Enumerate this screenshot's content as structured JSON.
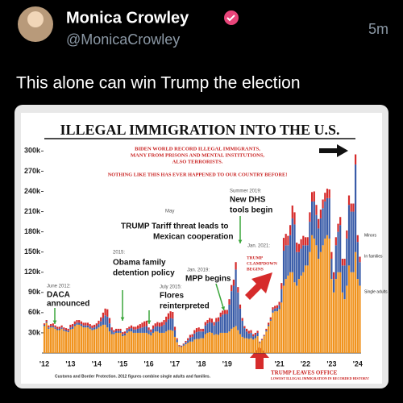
{
  "tweet": {
    "name": "Monica Crowley",
    "handle": "@MonicaCrowley",
    "time": "5m",
    "text": "This alone can win Trump the election"
  },
  "chart_data": {
    "type": "bar",
    "stacked": true,
    "title": "ILLEGAL IMMIGRATION INTO THE U.S.",
    "categories": [
      "'12",
      null,
      null,
      null,
      null,
      null,
      null,
      null,
      null,
      null,
      null,
      null,
      "'13",
      null,
      null,
      null,
      null,
      null,
      null,
      null,
      null,
      null,
      null,
      null,
      "'14",
      null,
      null,
      null,
      null,
      null,
      null,
      null,
      null,
      null,
      null,
      null,
      "'15",
      null,
      null,
      null,
      null,
      null,
      null,
      null,
      null,
      null,
      null,
      null,
      "'16",
      null,
      null,
      null,
      null,
      null,
      null,
      null,
      null,
      null,
      null,
      null,
      "'17",
      null,
      null,
      null,
      null,
      null,
      null,
      null,
      null,
      null,
      null,
      null,
      "'18",
      null,
      null,
      null,
      null,
      null,
      null,
      null,
      null,
      null,
      null,
      null,
      "'19",
      null,
      null,
      null,
      null,
      null,
      null,
      null,
      null,
      null,
      null,
      null,
      null,
      null,
      null,
      null,
      null,
      null,
      null,
      null,
      null,
      null,
      null,
      null,
      "'21",
      null,
      null,
      null,
      null,
      null,
      null,
      null,
      null,
      null,
      null,
      null,
      "'22",
      null,
      null,
      null,
      null,
      null,
      null,
      null,
      null,
      null,
      null,
      null,
      "'23",
      null,
      null,
      null,
      null,
      null,
      null,
      null,
      null,
      null,
      null,
      null,
      "'24",
      null
    ],
    "series": [
      {
        "name": "Single adults",
        "color": "#f0931e",
        "values": [
          40,
          45,
          36,
          38,
          38,
          36,
          34,
          34,
          36,
          33,
          32,
          31,
          35,
          36,
          40,
          42,
          42,
          40,
          38,
          38,
          38,
          36,
          34,
          35,
          36,
          38,
          40,
          42,
          42,
          38,
          32,
          28,
          28,
          30,
          30,
          30,
          25,
          26,
          30,
          32,
          32,
          30,
          30,
          30,
          30,
          30,
          30,
          30,
          28,
          26,
          30,
          32,
          32,
          30,
          30,
          30,
          32,
          34,
          34,
          33,
          24,
          16,
          10,
          9,
          11,
          13,
          15,
          17,
          17,
          20,
          21,
          21,
          22,
          22,
          28,
          30,
          31,
          30,
          27,
          28,
          27,
          30,
          30,
          30,
          30,
          32,
          36,
          38,
          40,
          34,
          28,
          24,
          22,
          22,
          21,
          22,
          20,
          22,
          25,
          15,
          19,
          25,
          32,
          40,
          48,
          60,
          62,
          62,
          65,
          75,
          100,
          110,
          115,
          120,
          120,
          105,
          100,
          110,
          115,
          120,
          130,
          130,
          150,
          175,
          170,
          160,
          140,
          150,
          160,
          170,
          175,
          170,
          110,
          90,
          110,
          120,
          120,
          90,
          80,
          100,
          130,
          120,
          120,
          150,
          110,
          100
        ]
      },
      {
        "name": "In families",
        "color": "#3a5ca8",
        "values": [
          2,
          2,
          2,
          2,
          2,
          2,
          2,
          2,
          2,
          2,
          2,
          2,
          3,
          3,
          3,
          3,
          3,
          3,
          3,
          3,
          3,
          3,
          3,
          3,
          4,
          5,
          7,
          10,
          14,
          16,
          12,
          6,
          3,
          3,
          3,
          3,
          3,
          3,
          4,
          4,
          5,
          5,
          5,
          6,
          7,
          8,
          9,
          10,
          6,
          5,
          6,
          7,
          8,
          9,
          10,
          12,
          14,
          16,
          18,
          18,
          10,
          4,
          1,
          1,
          2,
          3,
          4,
          6,
          7,
          9,
          10,
          11,
          10,
          10,
          13,
          14,
          15,
          15,
          14,
          18,
          20,
          24,
          27,
          28,
          28,
          40,
          56,
          62,
          84,
          56,
          38,
          24,
          15,
          10,
          8,
          8,
          5,
          5,
          5,
          1,
          1,
          1,
          2,
          2,
          2,
          4,
          4,
          5,
          6,
          20,
          52,
          50,
          45,
          55,
          80,
          86,
          50,
          40,
          40,
          40,
          30,
          30,
          45,
          50,
          55,
          45,
          45,
          50,
          55,
          55,
          55,
          60,
          30,
          20,
          50,
          60,
          70,
          40,
          50,
          70,
          90,
          90,
          90,
          130,
          55,
          35
        ]
      },
      {
        "name": "Minors",
        "color": "#d62b2b",
        "values": [
          2,
          2,
          3,
          3,
          4,
          3,
          3,
          3,
          3,
          3,
          3,
          3,
          4,
          4,
          4,
          4,
          4,
          4,
          4,
          4,
          4,
          4,
          4,
          4,
          4,
          5,
          6,
          8,
          10,
          11,
          8,
          4,
          3,
          3,
          3,
          3,
          3,
          3,
          3,
          3,
          4,
          4,
          4,
          5,
          6,
          7,
          8,
          8,
          4,
          4,
          5,
          5,
          6,
          6,
          6,
          7,
          8,
          9,
          10,
          10,
          5,
          2,
          1,
          1,
          1,
          2,
          3,
          4,
          4,
          5,
          6,
          6,
          4,
          4,
          5,
          5,
          6,
          6,
          5,
          6,
          6,
          6,
          6,
          6,
          6,
          8,
          9,
          9,
          11,
          8,
          6,
          4,
          3,
          4,
          4,
          4,
          3,
          3,
          3,
          1,
          1,
          1,
          2,
          3,
          3,
          4,
          4,
          4,
          5,
          9,
          19,
          17,
          14,
          15,
          19,
          18,
          14,
          12,
          14,
          14,
          12,
          12,
          14,
          14,
          15,
          15,
          14,
          13,
          13,
          13,
          14,
          13,
          10,
          10,
          12,
          12,
          12,
          10,
          10,
          12,
          14,
          12,
          12,
          15,
          10,
          8
        ]
      }
    ],
    "ylim": [
      0,
      310
    ],
    "yticks": [
      {
        "value": 30,
        "label": "30k"
      },
      {
        "value": 60,
        "label": "60k"
      },
      {
        "value": 90,
        "label": "90k"
      },
      {
        "value": 120,
        "label": "120k"
      },
      {
        "value": 150,
        "label": "150k"
      },
      {
        "value": 180,
        "label": "180k"
      },
      {
        "value": 210,
        "label": "210k"
      },
      {
        "value": 240,
        "label": "240k"
      },
      {
        "value": 270,
        "label": "270k"
      },
      {
        "value": 300,
        "label": "300k"
      }
    ],
    "annotations": [
      "BIDEN WORLD RECORD ILLEGAL IMMIGRANTS,",
      "MANY FROM PRISONS AND MENTAL INSTITUTIONS,",
      "ALSO TERRORISTS.",
      "NOTHING LIKE THIS HAS EVER HAPPENED TO OUR COUNTRY BEFORE!",
      "June 2012:",
      "DACA",
      "announced",
      "2015:",
      "Obama family",
      "detention policy",
      "May",
      "TRUMP Tariff threat leads to",
      "Mexican cooperation",
      "July 2015:",
      "Flores",
      "reinterpreted",
      "Jan. 2019:",
      "MPP begins",
      "Summer 2019:",
      "New DHS",
      "tools begin",
      "Jan. 2021:",
      "TRUMP",
      "CLAMPDOWN",
      "BEGINS",
      "TRUMP LEAVES OFFICE",
      "LOWEST ILLEGAL IMMIGRATION IN RECORDED HISTORY!",
      "Customs and Border Protection. 2012 figures combine single adults and families."
    ]
  }
}
